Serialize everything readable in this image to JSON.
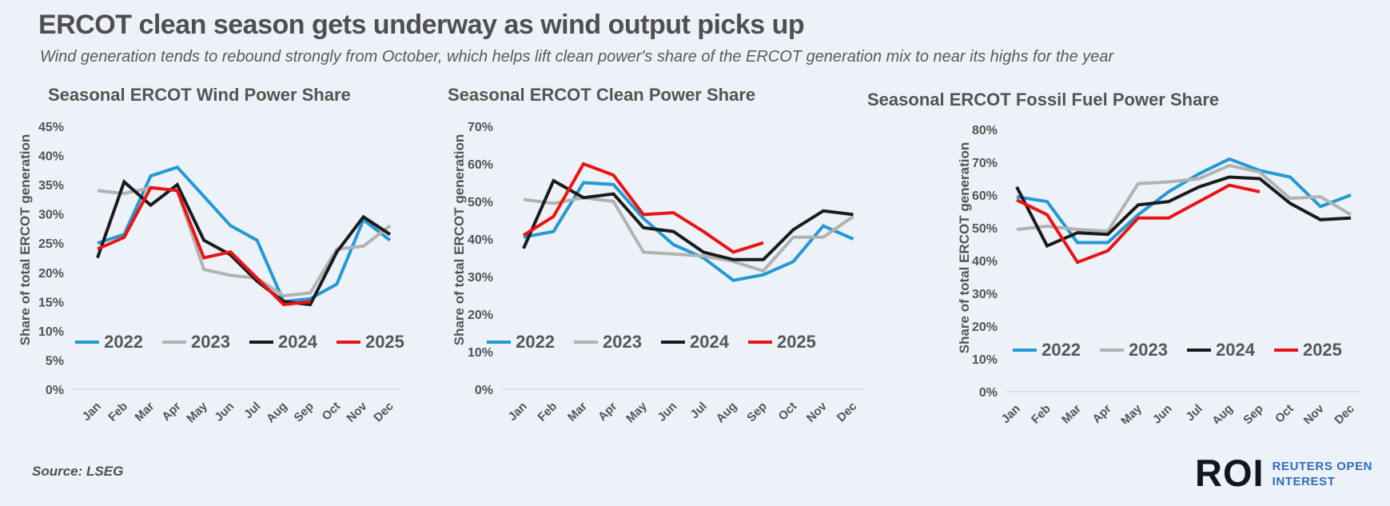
{
  "page": {
    "title": "ERCOT clean season gets underway as wind output picks up",
    "subtitle": "Wind generation tends to rebound strongly from October, which helps lift clean power's share of the ERCOT generation mix to near its highs for the year",
    "source": "Source: LSEG",
    "logo": {
      "mark": "ROI",
      "line1": "REUTERS OPEN",
      "line2": "INTEREST"
    }
  },
  "palette": {
    "s2022": "#2399d6",
    "s2023": "#b2b2b2",
    "s2024": "#1b1b1b",
    "s2025": "#ea1414",
    "text": "#545454",
    "axis_line": "#c9cdd3",
    "background": "#edf2f8",
    "logo_navy": "#14161f",
    "logo_blue": "#2f6db8"
  },
  "chart_data": [
    {
      "type": "line",
      "title": "Seasonal ERCOT Wind Power Share",
      "ylabel": "Share of total ERCOT generation",
      "ylim": [
        0,
        45
      ],
      "ytick_step": 5,
      "ytick_suffix": "%",
      "grid": "baseline-only",
      "legend_position": "inside-bottom",
      "categories": [
        "Jan",
        "Feb",
        "Mar",
        "Apr",
        "May",
        "Jun",
        "Jul",
        "Aug",
        "Sep",
        "Oct",
        "Nov",
        "Dec"
      ],
      "series": [
        {
          "name": "2022",
          "color_key": "s2022",
          "values": [
            25,
            26.5,
            36.5,
            38,
            33,
            28,
            25.5,
            15,
            15.5,
            18,
            29,
            25.5
          ]
        },
        {
          "name": "2023",
          "color_key": "s2023",
          "values": [
            34,
            33.5,
            34.5,
            34,
            20.5,
            19.5,
            19,
            16,
            16.5,
            24,
            24.5,
            28
          ]
        },
        {
          "name": "2024",
          "color_key": "s2024",
          "values": [
            22.5,
            35.5,
            31.5,
            35,
            25.5,
            23,
            18.5,
            15,
            14.5,
            23.5,
            29.5,
            26.5
          ]
        },
        {
          "name": "2025",
          "color_key": "s2025",
          "values": [
            24,
            26,
            34.5,
            34,
            22.5,
            23.5,
            19,
            14.5,
            15
          ]
        }
      ]
    },
    {
      "type": "line",
      "title": "Seasonal ERCOT Clean Power Share",
      "ylabel": "Share of total ERCOT generation",
      "ylim": [
        0,
        70
      ],
      "ytick_step": 10,
      "ytick_suffix": "%",
      "grid": "baseline-only",
      "legend_position": "inside-bottom",
      "categories": [
        "Jan",
        "Feb",
        "Mar",
        "Apr",
        "May",
        "Jun",
        "Jul",
        "Aug",
        "Sep",
        "Oct",
        "Nov",
        "Dec"
      ],
      "series": [
        {
          "name": "2022",
          "color_key": "s2022",
          "values": [
            40.5,
            42,
            55,
            54.5,
            45.5,
            38.5,
            35,
            29,
            30.5,
            34,
            43.5,
            40
          ]
        },
        {
          "name": "2023",
          "color_key": "s2023",
          "values": [
            50.5,
            49.5,
            51,
            50,
            36.5,
            36,
            35.5,
            34,
            31.5,
            40.5,
            40.5,
            46
          ]
        },
        {
          "name": "2024",
          "color_key": "s2024",
          "values": [
            37.5,
            55.5,
            51,
            52,
            43,
            42,
            36.5,
            34.5,
            34.5,
            42.5,
            47.5,
            46.5
          ]
        },
        {
          "name": "2025",
          "color_key": "s2025",
          "values": [
            41,
            46,
            60,
            57,
            46.5,
            47,
            42,
            36.5,
            39
          ]
        }
      ]
    },
    {
      "type": "line",
      "title": "Seasonal ERCOT Fossil Fuel Power Share",
      "ylabel": "Share of total ERCOT generation",
      "ylim": [
        0,
        80
      ],
      "ytick_step": 10,
      "ytick_suffix": "%",
      "grid": "baseline-only",
      "legend_position": "inside-bottom",
      "categories": [
        "Jan",
        "Feb",
        "Mar",
        "Apr",
        "May",
        "Jun",
        "Jul",
        "Aug",
        "Sep",
        "Oct",
        "Nov",
        "Dec"
      ],
      "series": [
        {
          "name": "2022",
          "color_key": "s2022",
          "values": [
            59.5,
            58,
            45.5,
            45.5,
            54,
            61,
            66.5,
            71,
            67.5,
            65.5,
            56.5,
            60
          ]
        },
        {
          "name": "2023",
          "color_key": "s2023",
          "values": [
            49.5,
            50.5,
            49.5,
            49,
            63.5,
            64,
            65,
            69,
            67,
            59,
            59.5,
            54
          ]
        },
        {
          "name": "2024",
          "color_key": "s2024",
          "values": [
            62.5,
            44.5,
            48.5,
            48,
            57,
            58,
            62.5,
            65.5,
            65,
            57.5,
            52.5,
            53
          ]
        },
        {
          "name": "2025",
          "color_key": "s2025",
          "values": [
            58.5,
            54,
            39.5,
            43,
            53,
            53,
            58,
            63,
            61
          ]
        }
      ]
    }
  ]
}
